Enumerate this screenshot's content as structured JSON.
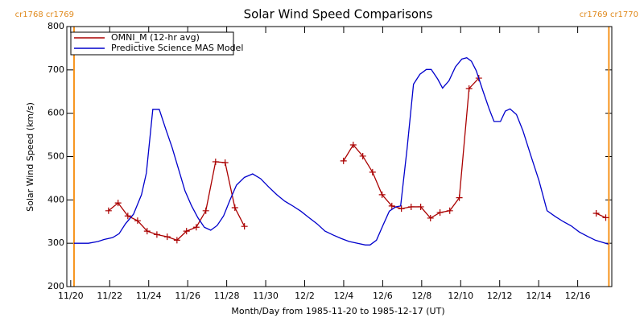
{
  "chart_data": {
    "type": "line",
    "title": "Solar Wind Speed Comparisons",
    "xlabel": "Month/Day from 1985-11-20 to 1985-12-17 (UT)",
    "ylabel": "Solar Wind Speed (km/s)",
    "xlim": [
      -0.2,
      27.75
    ],
    "ylim": [
      200,
      800
    ],
    "yticks": [
      200,
      300,
      400,
      500,
      600,
      700,
      800
    ],
    "xticks": [
      {
        "value": 0,
        "label": "11/20"
      },
      {
        "value": 2,
        "label": "11/22"
      },
      {
        "value": 4,
        "label": "11/24"
      },
      {
        "value": 6,
        "label": "11/26"
      },
      {
        "value": 8,
        "label": "11/28"
      },
      {
        "value": 10,
        "label": "11/30"
      },
      {
        "value": 12,
        "label": "12/2"
      },
      {
        "value": 14,
        "label": "12/4"
      },
      {
        "value": 16,
        "label": "12/6"
      },
      {
        "value": 18,
        "label": "12/8"
      },
      {
        "value": 20,
        "label": "12/10"
      },
      {
        "value": 22,
        "label": "12/12"
      },
      {
        "value": 24,
        "label": "12/14"
      },
      {
        "value": 26,
        "label": "12/16"
      }
    ],
    "legend": "upper left",
    "markers": [
      {
        "x": 0.17,
        "label": "cr1768 cr1769"
      },
      {
        "x": 27.6,
        "label": "cr1769 cr1770"
      }
    ],
    "marker_color": "#f7941d",
    "series": [
      {
        "name": "OMNI_M (12-hr avg)",
        "color": "#aa0000",
        "symbol": "plus",
        "x": [
          1.94,
          2.43,
          2.93,
          3.43,
          3.92,
          4.42,
          4.95,
          5.45,
          5.94,
          6.44,
          6.93,
          7.43,
          7.92,
          8.42,
          8.91,
          null,
          13.99,
          14.49,
          14.98,
          15.48,
          15.97,
          16.47,
          16.96,
          17.46,
          17.95,
          18.45,
          18.94,
          19.44,
          19.93,
          20.43,
          20.93,
          null,
          26.95,
          27.44
        ],
        "values": [
          375,
          393,
          363,
          352,
          328,
          320,
          315,
          307,
          328,
          337,
          375,
          488,
          486,
          382,
          339,
          null,
          490,
          527,
          501,
          464,
          412,
          386,
          380,
          384,
          384,
          358,
          371,
          375,
          405,
          657,
          681,
          null,
          369,
          359
        ]
      },
      {
        "name": "Predictive Science MAS Model",
        "color": "#0000cc",
        "x": [
          0.17,
          0.91,
          1.4,
          1.73,
          2.15,
          2.48,
          2.81,
          3.22,
          3.63,
          3.88,
          4.21,
          4.54,
          4.87,
          5.2,
          5.53,
          5.86,
          6.19,
          6.52,
          6.85,
          7.18,
          7.51,
          7.84,
          8.17,
          8.5,
          8.91,
          9.33,
          9.74,
          10.15,
          10.57,
          10.98,
          11.39,
          11.8,
          12.22,
          12.63,
          13.04,
          13.46,
          13.87,
          14.28,
          14.69,
          15.11,
          15.35,
          15.68,
          16.01,
          16.34,
          16.67,
          16.92,
          17.25,
          17.58,
          17.91,
          18.24,
          18.49,
          18.82,
          19.07,
          19.4,
          19.73,
          20.06,
          20.31,
          20.55,
          20.8,
          21.13,
          21.46,
          21.71,
          22.04,
          22.29,
          22.53,
          22.86,
          23.19,
          23.6,
          24.02,
          24.43,
          24.84,
          25.26,
          25.67,
          26.08,
          26.5,
          26.91,
          27.57
        ],
        "values": [
          300,
          300,
          304,
          309,
          313,
          322,
          345,
          367,
          412,
          462,
          609,
          609,
          564,
          521,
          471,
          421,
          387,
          359,
          337,
          330,
          341,
          363,
          400,
          434,
          452,
          460,
          449,
          430,
          412,
          397,
          386,
          374,
          359,
          345,
          328,
          319,
          311,
          304,
          300,
          296,
          296,
          307,
          341,
          374,
          384,
          386,
          518,
          667,
          690,
          701,
          701,
          679,
          658,
          675,
          707,
          725,
          728,
          720,
          698,
          653,
          610,
          581,
          581,
          605,
          610,
          597,
          560,
          502,
          444,
          375,
          362,
          350,
          340,
          326,
          316,
          307,
          298
        ]
      }
    ]
  }
}
